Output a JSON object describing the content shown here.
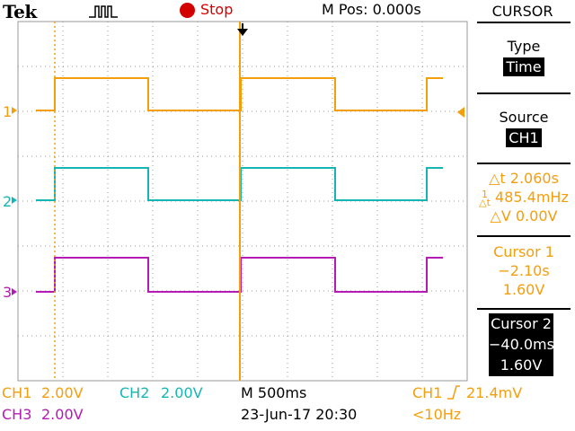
{
  "header": {
    "brand": "Tek",
    "trigger_icon": "trigger-pulse-icon",
    "run_state": "Stop",
    "run_color": "#d40000",
    "mpos": "M Pos: 0.000s"
  },
  "channels": [
    {
      "label": "1",
      "color": "#f59e0b"
    },
    {
      "label": "2",
      "color": "#16b5b5"
    },
    {
      "label": "3",
      "color": "#b51ab5"
    }
  ],
  "menu": {
    "title": "CURSOR",
    "type_label": "Type",
    "type_value": "Time",
    "source_label": "Source",
    "source_value": "CH1",
    "delta_t": "2.060s",
    "delta_f": "485.4mHz",
    "delta_v": "0.00V",
    "cursor1_title": "Cursor 1",
    "cursor1_time": "−2.10s",
    "cursor1_volt": "1.60V",
    "cursor2_title": "Cursor 2",
    "cursor2_time": "−40.0ms",
    "cursor2_volt": "1.60V"
  },
  "status": {
    "ch1_label": "CH1",
    "ch1_scale": "2.00V",
    "ch2_label": "CH2",
    "ch2_scale": "2.00V",
    "ch3_label": "CH3",
    "ch3_scale": "2.00V",
    "timebase": "M 500ms",
    "date": "23-Jun-17 20:30",
    "trig_source": "CH1",
    "trig_level": "21.4mV",
    "trig_freq": "<10Hz"
  },
  "colors": {
    "ch1": "#f59e0b",
    "ch2": "#16b5b5",
    "ch3": "#b51ab5",
    "grid": "#9a9a9a"
  }
}
